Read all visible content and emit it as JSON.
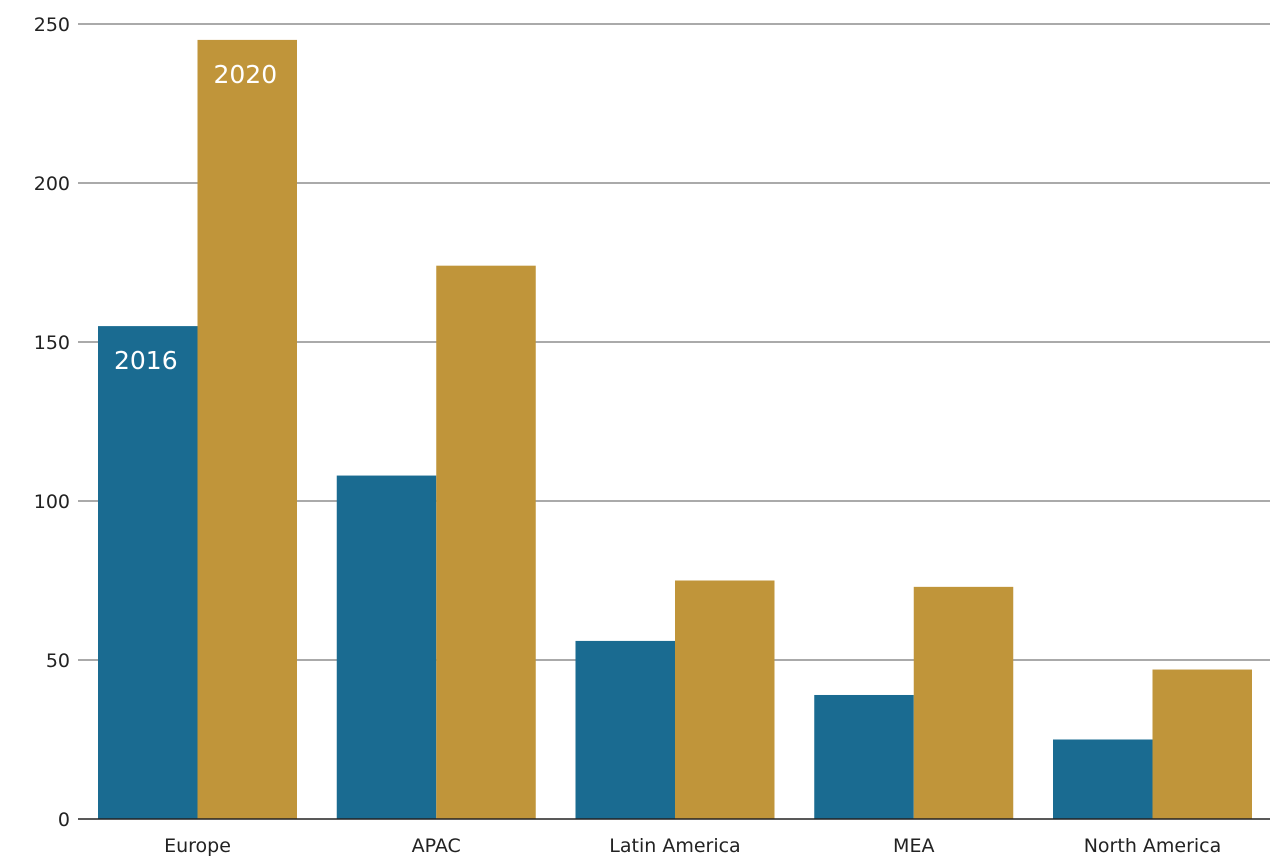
{
  "chart_data": {
    "type": "bar",
    "categories": [
      "Europe",
      "APAC",
      "Latin America",
      "MEA",
      "North America"
    ],
    "series": [
      {
        "name": "2016",
        "color": "#1a6b91",
        "values": [
          155,
          108,
          56,
          39,
          25
        ]
      },
      {
        "name": "2020",
        "color": "#c0953a",
        "values": [
          245,
          174,
          75,
          73,
          47
        ]
      }
    ],
    "title": "",
    "xlabel": "",
    "ylabel": "",
    "ylim": [
      0,
      250
    ],
    "yticks": [
      "0",
      "50",
      "100",
      "150",
      "200",
      "250"
    ],
    "grid": true,
    "legend": "inline labels inside the Europe bars"
  }
}
